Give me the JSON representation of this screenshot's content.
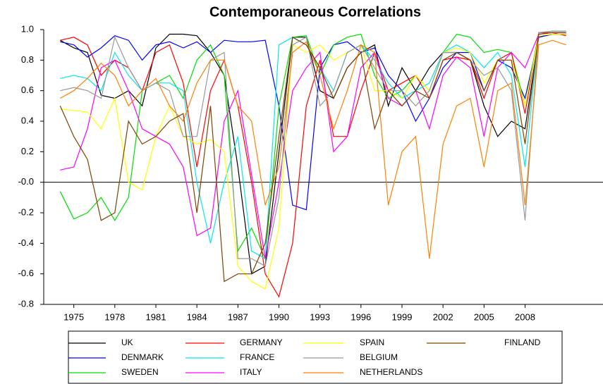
{
  "chart_data": {
    "type": "line",
    "title": "Contemporaneous Correlations",
    "x": [
      1974,
      1975,
      1976,
      1977,
      1978,
      1979,
      1980,
      1981,
      1982,
      1983,
      1984,
      1985,
      1986,
      1987,
      1988,
      1989,
      1990,
      1991,
      1992,
      1993,
      1994,
      1995,
      1996,
      1997,
      1998,
      1999,
      2000,
      2001,
      2002,
      2003,
      2004,
      2005,
      2006,
      2007,
      2008,
      2009,
      2010,
      2011
    ],
    "xlim": [
      1972.8,
      2013.7
    ],
    "xticks": [
      1975,
      1978,
      1981,
      1984,
      1987,
      1990,
      1993,
      1996,
      1999,
      2002,
      2005,
      2008
    ],
    "ylim": [
      -0.8,
      1.0
    ],
    "yticks": [
      {
        "value": 1.0,
        "label": "1.0"
      },
      {
        "value": 0.8,
        "label": "0.8"
      },
      {
        "value": 0.6,
        "label": "0.6"
      },
      {
        "value": 0.4,
        "label": "0.4"
      },
      {
        "value": 0.2,
        "label": "0.2"
      },
      {
        "value": 0,
        "label": "-0.0"
      },
      {
        "value": -0.2,
        "label": "-0.2"
      },
      {
        "value": -0.4,
        "label": "-0.4"
      },
      {
        "value": -0.6,
        "label": "-0.6"
      },
      {
        "value": -0.8,
        "label": "-0.8"
      }
    ],
    "series": [
      {
        "name": "UK",
        "color": "#000000",
        "values": [
          0.93,
          0.88,
          0.85,
          0.57,
          0.55,
          0.6,
          0.5,
          0.88,
          0.97,
          0.97,
          0.96,
          0.85,
          0.7,
          0.1,
          -0.6,
          -0.55,
          0.2,
          0.95,
          0.95,
          0.6,
          0.55,
          0.75,
          0.85,
          0.9,
          0.5,
          0.75,
          0.6,
          0.75,
          0.85,
          0.85,
          0.8,
          0.5,
          0.3,
          0.4,
          0.35,
          0.95,
          0.97,
          0.97
        ]
      },
      {
        "name": "DENMARK",
        "color": "#0000ff",
        "values": [
          0.92,
          0.9,
          0.82,
          0.88,
          0.96,
          0.93,
          0.8,
          0.9,
          0.92,
          0.88,
          0.92,
          0.85,
          0.93,
          0.92,
          0.92,
          0.93,
          0.5,
          -0.15,
          -0.18,
          0.75,
          0.9,
          0.92,
          0.85,
          0.88,
          0.7,
          0.6,
          0.4,
          0.55,
          0.75,
          0.85,
          0.85,
          0.6,
          0.8,
          0.75,
          0.55,
          0.95,
          0.97,
          0.97
        ]
      },
      {
        "name": "SWEDEN",
        "color": "#00e000",
        "values": [
          -0.06,
          -0.24,
          -0.2,
          -0.1,
          -0.25,
          -0.1,
          0.6,
          0.65,
          0.7,
          0.55,
          0.8,
          0.9,
          0.7,
          -0.45,
          -0.3,
          -0.5,
          0.5,
          0.95,
          0.96,
          0.7,
          0.9,
          0.95,
          0.97,
          0.7,
          0.55,
          0.6,
          0.7,
          0.6,
          0.85,
          0.97,
          0.95,
          0.85,
          0.87,
          0.85,
          0.5,
          0.98,
          0.99,
          0.99
        ]
      },
      {
        "name": "GERMANY",
        "color": "#ff0000",
        "values": [
          0.93,
          0.95,
          0.9,
          0.7,
          0.8,
          0.75,
          0.6,
          0.85,
          0.9,
          0.65,
          0.1,
          0.6,
          0.8,
          0.5,
          0.0,
          -0.6,
          -0.75,
          -0.4,
          0.5,
          0.8,
          0.3,
          0.3,
          0.6,
          0.85,
          0.6,
          0.65,
          0.7,
          0.55,
          0.8,
          0.82,
          0.8,
          0.55,
          0.8,
          0.85,
          0.45,
          0.98,
          0.98,
          0.96
        ]
      },
      {
        "name": "FRANCE",
        "color": "#00e8f0",
        "values": [
          0.68,
          0.7,
          0.68,
          0.6,
          0.85,
          0.7,
          0.6,
          0.65,
          0.65,
          0.6,
          0.0,
          -0.4,
          0.0,
          0.3,
          -0.45,
          -0.5,
          0.9,
          0.95,
          0.9,
          0.75,
          0.6,
          0.85,
          0.9,
          0.8,
          0.65,
          0.55,
          0.6,
          0.65,
          0.85,
          0.9,
          0.85,
          0.75,
          0.85,
          0.7,
          0.1,
          0.97,
          0.98,
          0.98
        ]
      },
      {
        "name": "ITALY",
        "color": "#ff00ff",
        "values": [
          0.08,
          0.1,
          0.35,
          0.75,
          0.8,
          0.6,
          0.35,
          0.3,
          0.25,
          0.1,
          -0.35,
          -0.3,
          0.4,
          0.6,
          0.05,
          -0.5,
          0.0,
          0.6,
          0.75,
          0.85,
          0.2,
          0.3,
          0.75,
          0.85,
          0.55,
          0.5,
          0.6,
          0.35,
          0.7,
          0.82,
          0.75,
          0.3,
          0.75,
          0.85,
          0.75,
          0.97,
          0.98,
          0.98
        ]
      },
      {
        "name": "SPAIN",
        "color": "#ffff00",
        "values": [
          0.48,
          0.47,
          0.46,
          0.35,
          0.55,
          0.0,
          -0.05,
          0.3,
          0.5,
          0.3,
          0.25,
          0.28,
          0.2,
          -0.55,
          -0.65,
          -0.7,
          -0.3,
          0.9,
          0.85,
          0.9,
          0.8,
          0.85,
          0.9,
          0.6,
          0.6,
          0.55,
          0.7,
          0.6,
          0.85,
          0.88,
          0.85,
          0.65,
          0.8,
          0.8,
          0.5,
          0.96,
          0.97,
          0.97
        ]
      },
      {
        "name": "BELGIUM",
        "color": "#999999",
        "values": [
          0.6,
          0.62,
          0.6,
          0.55,
          0.95,
          0.75,
          0.6,
          0.65,
          0.6,
          0.3,
          0.3,
          0.8,
          0.85,
          -0.5,
          -0.5,
          -0.55,
          -0.1,
          0.9,
          0.95,
          0.5,
          0.6,
          0.85,
          0.9,
          0.75,
          0.6,
          0.6,
          0.5,
          0.6,
          0.85,
          0.85,
          0.8,
          0.7,
          0.75,
          0.6,
          -0.25,
          0.98,
          0.99,
          0.99
        ]
      },
      {
        "name": "NETHERLANDS",
        "color": "#ff8000",
        "values": [
          0.55,
          0.6,
          0.68,
          0.78,
          0.7,
          0.5,
          0.6,
          0.68,
          0.5,
          0.4,
          0.65,
          0.8,
          0.8,
          0.5,
          0.4,
          -0.15,
          0.1,
          0.85,
          0.92,
          0.7,
          0.35,
          0.6,
          0.9,
          0.85,
          -0.15,
          0.2,
          0.3,
          -0.5,
          0.25,
          0.5,
          0.55,
          0.1,
          0.6,
          0.65,
          -0.15,
          0.9,
          0.93,
          0.9
        ]
      },
      {
        "name": "FINLAND",
        "color": "#804000",
        "values": [
          0.5,
          0.3,
          0.15,
          -0.25,
          -0.2,
          0.4,
          0.25,
          0.3,
          0.4,
          0.45,
          -0.2,
          0.5,
          -0.65,
          -0.6,
          -0.6,
          -0.4,
          0.3,
          0.95,
          0.9,
          0.75,
          0.55,
          0.75,
          0.85,
          0.35,
          0.6,
          0.5,
          0.6,
          0.55,
          0.8,
          0.85,
          0.8,
          0.6,
          0.8,
          0.8,
          0.25,
          0.97,
          0.98,
          0.98
        ]
      }
    ]
  }
}
